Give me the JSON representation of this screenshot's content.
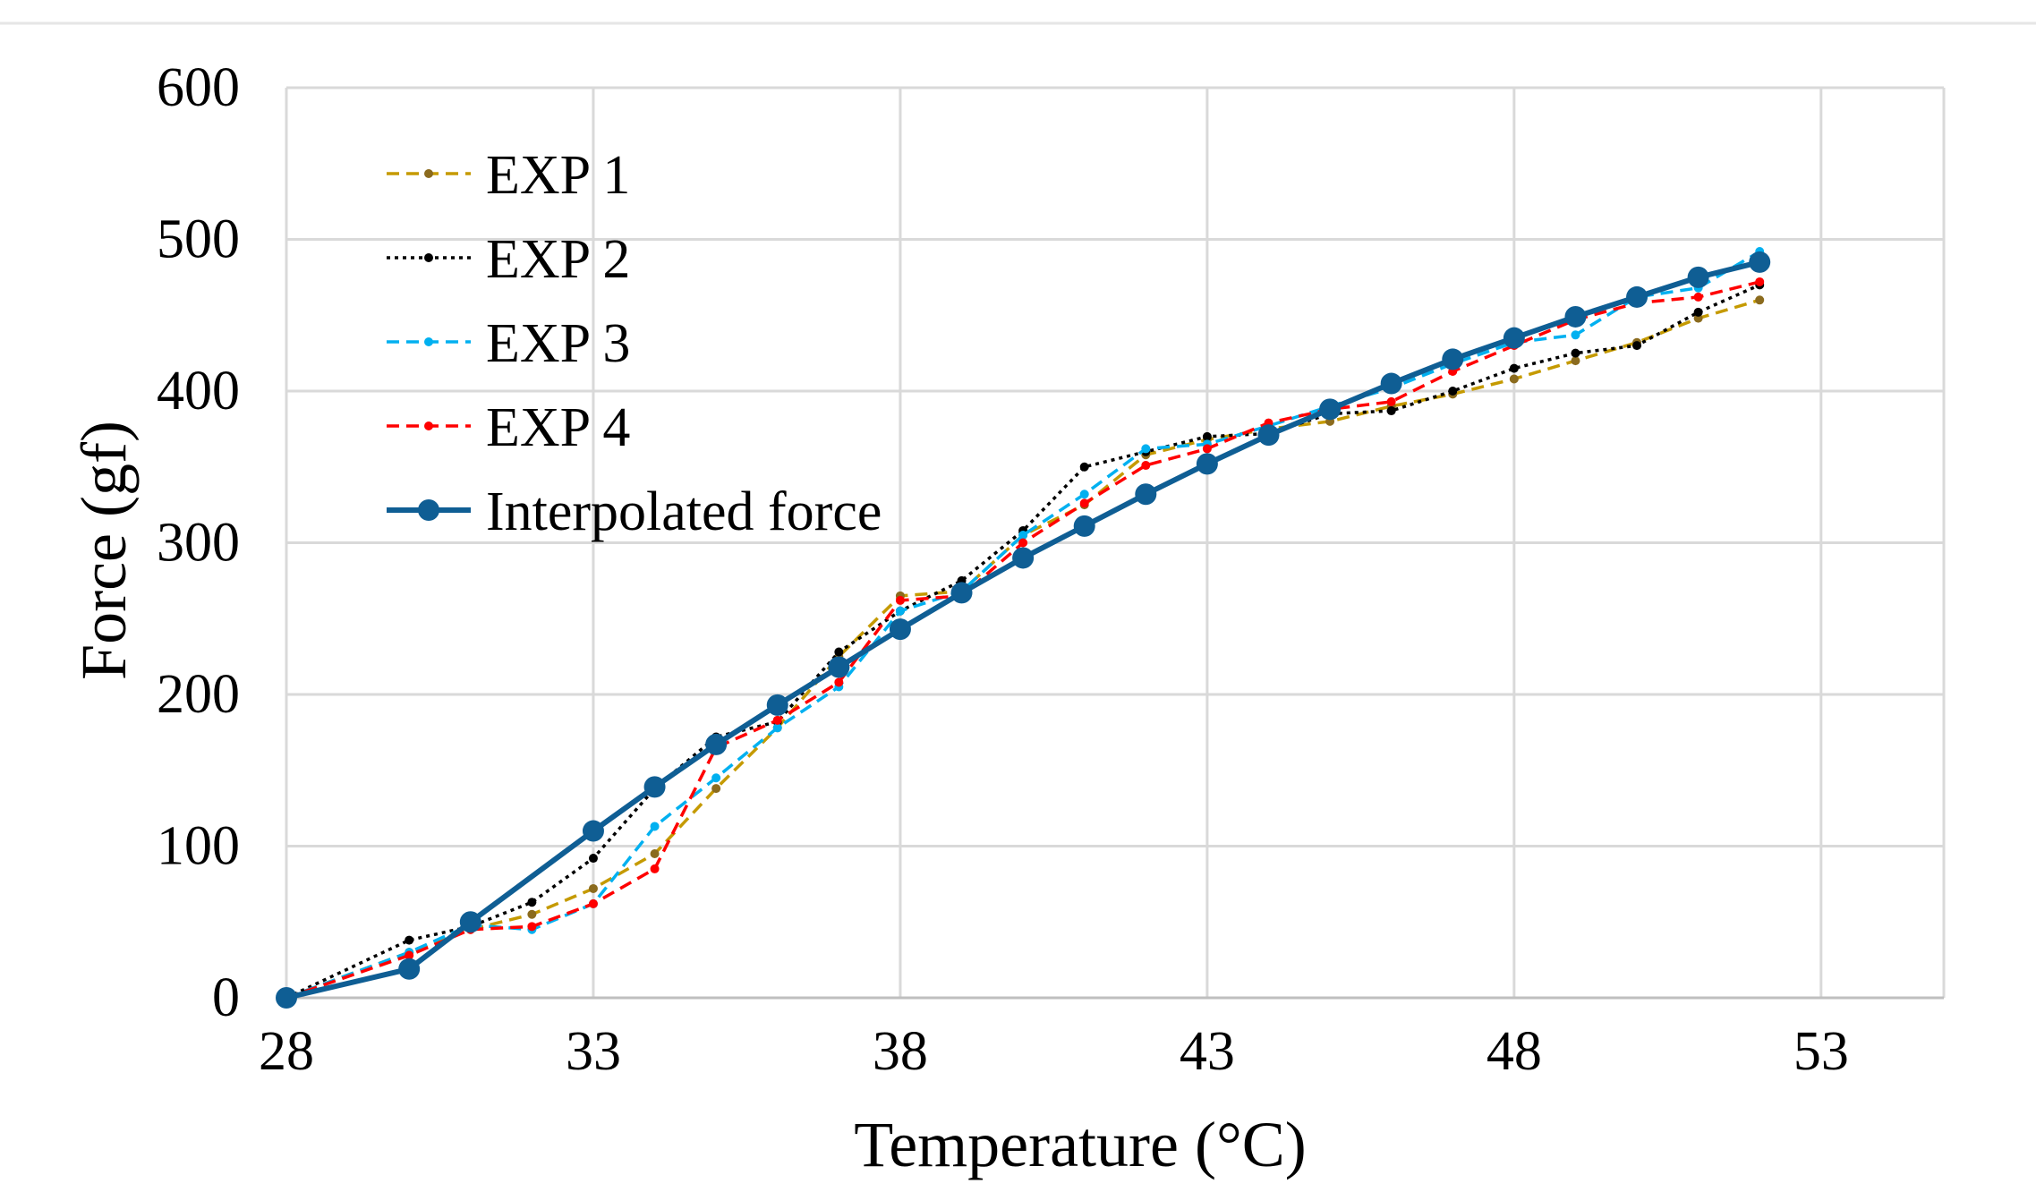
{
  "chart_data": {
    "type": "line",
    "title": "",
    "xlabel": "Temperature (°C)",
    "ylabel": "Force (gf)",
    "xlim": [
      28,
      55
    ],
    "ylim": [
      0,
      600
    ],
    "x_ticks": [
      28,
      33,
      38,
      43,
      48,
      53
    ],
    "y_ticks": [
      0,
      100,
      200,
      300,
      400,
      500,
      600
    ],
    "x_tick_labels": [
      "28",
      "33",
      "38",
      "43",
      "48",
      "53"
    ],
    "y_tick_labels": [
      "0",
      "100",
      "200",
      "300",
      "400",
      "500",
      "600"
    ],
    "grid": true,
    "legend_position": "top-left",
    "series": [
      {
        "name": "EXP 1",
        "color": "#C59A00",
        "marker_color": "#8B6B1E",
        "style": "dashed",
        "x": [
          28,
          30,
          31,
          32,
          33,
          34,
          35,
          36,
          37,
          38,
          39,
          40,
          41,
          42,
          43,
          44,
          45,
          46,
          47,
          48,
          49,
          50,
          51,
          52
        ],
        "y": [
          0,
          30,
          45,
          55,
          72,
          95,
          138,
          178,
          225,
          265,
          268,
          305,
          325,
          358,
          368,
          375,
          380,
          390,
          398,
          408,
          420,
          432,
          448,
          460
        ]
      },
      {
        "name": "EXP 2",
        "color": "#000000",
        "marker_color": "#000000",
        "style": "dotted",
        "x": [
          28,
          30,
          31,
          32,
          33,
          34,
          35,
          36,
          37,
          38,
          39,
          40,
          41,
          42,
          43,
          44,
          45,
          46,
          47,
          48,
          49,
          50,
          51,
          52
        ],
        "y": [
          0,
          38,
          47,
          63,
          92,
          138,
          172,
          182,
          228,
          255,
          275,
          308,
          350,
          360,
          370,
          372,
          385,
          387,
          400,
          415,
          425,
          430,
          452,
          470
        ]
      },
      {
        "name": "EXP 3",
        "color": "#00B0F0",
        "marker_color": "#00B0F0",
        "style": "dashed",
        "x": [
          28,
          30,
          31,
          32,
          33,
          34,
          35,
          36,
          37,
          38,
          39,
          40,
          41,
          42,
          43,
          44,
          45,
          46,
          47,
          48,
          49,
          50,
          51,
          52
        ],
        "y": [
          0,
          30,
          48,
          45,
          62,
          113,
          145,
          178,
          205,
          255,
          268,
          305,
          332,
          362,
          365,
          377,
          390,
          402,
          418,
          432,
          437,
          462,
          468,
          492
        ]
      },
      {
        "name": "EXP 4",
        "color": "#FF0000",
        "marker_color": "#FF0000",
        "style": "dashed",
        "x": [
          28,
          30,
          31,
          32,
          33,
          34,
          35,
          36,
          37,
          38,
          39,
          40,
          41,
          42,
          43,
          44,
          45,
          46,
          47,
          48,
          49,
          50,
          51,
          52
        ],
        "y": [
          0,
          28,
          45,
          47,
          62,
          85,
          165,
          183,
          208,
          262,
          265,
          300,
          326,
          351,
          362,
          379,
          388,
          393,
          413,
          430,
          447,
          458,
          462,
          472
        ]
      },
      {
        "name": "Interpolated force",
        "color": "#0F5E94",
        "marker_color": "#0F5E94",
        "style": "solid",
        "x": [
          28,
          30,
          31,
          33,
          34,
          35,
          36,
          37,
          38,
          39,
          40,
          41,
          42,
          43,
          44,
          45,
          46,
          47,
          48,
          49,
          50,
          51,
          52
        ],
        "y": [
          0,
          19,
          50,
          110,
          139,
          167,
          193,
          218,
          243,
          267,
          290,
          311,
          332,
          352,
          371,
          388,
          405,
          421,
          435,
          449,
          462,
          475,
          485
        ]
      }
    ]
  }
}
